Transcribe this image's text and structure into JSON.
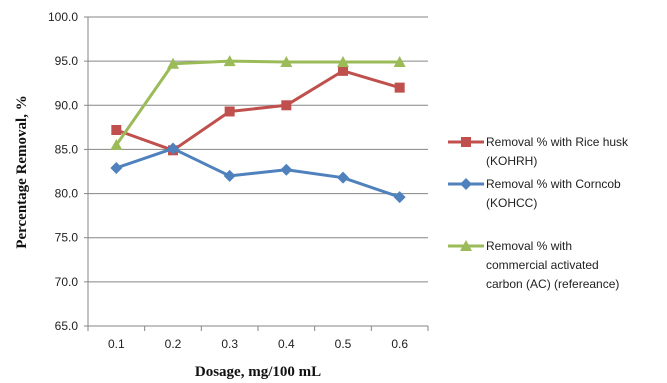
{
  "chart_data": {
    "type": "line",
    "title": "",
    "xlabel": "Dosage, mg/100 mL",
    "ylabel": "Percentage Removal, %",
    "categories": [
      "0.1",
      "0.2",
      "0.3",
      "0.4",
      "0.5",
      "0.6"
    ],
    "ylim": [
      65.0,
      100.0
    ],
    "yticks": [
      "65.0",
      "70.0",
      "75.0",
      "80.0",
      "85.0",
      "90.0",
      "95.0",
      "100.0"
    ],
    "grid": "horizontal",
    "legend_position": "right",
    "series": [
      {
        "name_lines": [
          "Removal %  with Rice husk",
          "(KOHRH)"
        ],
        "marker": "square",
        "color": "#c0504d",
        "values": [
          87.2,
          84.9,
          89.3,
          90.0,
          93.9,
          92.0
        ]
      },
      {
        "name_lines": [
          "Removal %  with Corncob",
          "(KOHCC)"
        ],
        "marker": "diamond",
        "color": "#4f81bd",
        "values": [
          82.9,
          85.1,
          82.0,
          82.7,
          81.8,
          79.6
        ]
      },
      {
        "name_lines": [
          "Removal %  with",
          "commercial  activated",
          "carbon (AC) (refereance)"
        ],
        "marker": "triangle",
        "color": "#9bbb59",
        "values": [
          85.5,
          94.7,
          95.0,
          94.9,
          94.9,
          94.9
        ]
      }
    ]
  }
}
